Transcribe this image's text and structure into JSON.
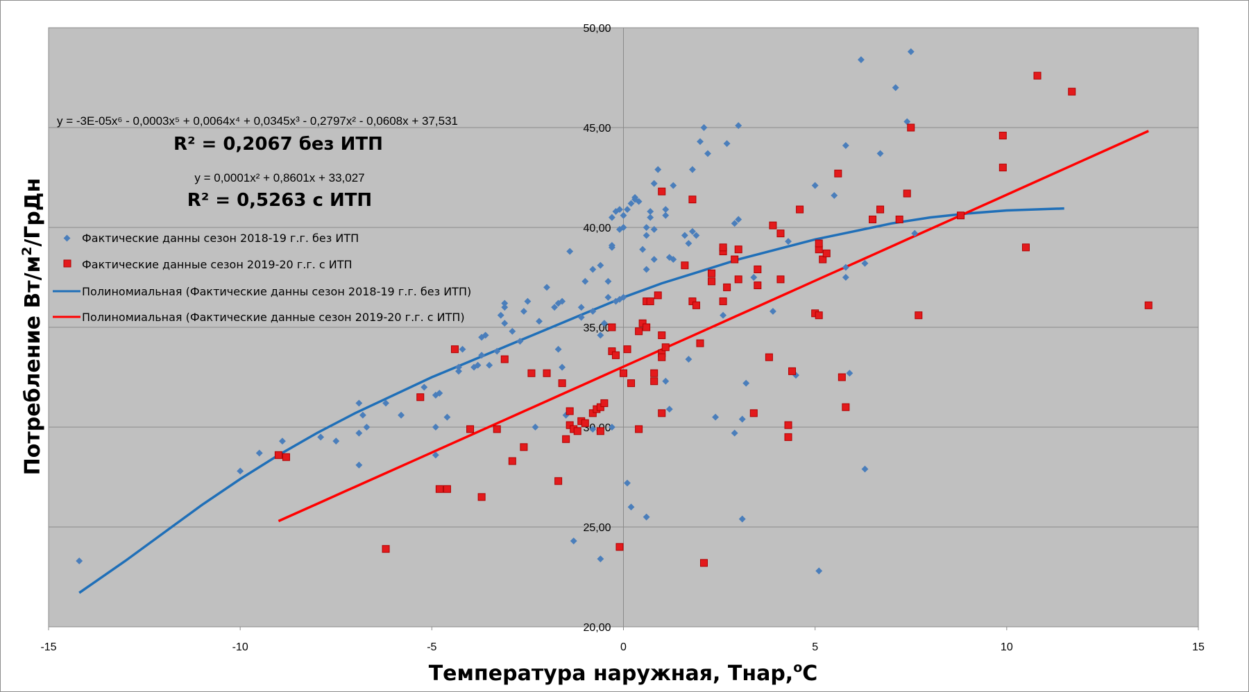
{
  "chart_data": {
    "type": "scatter",
    "xlabel": "Температура наружная, Тнар,",
    "xlabel_sup": "o",
    "xlabel_end": "С",
    "ylabel": "Потребление Вт/м",
    "ylabel_sup": "2",
    "ylabel_end": "/ГрДн",
    "xlim": [
      -15,
      15
    ],
    "ylim": [
      20,
      50
    ],
    "x_ticks": [
      "-15",
      "-10",
      "-5",
      "0",
      "5",
      "10",
      "15"
    ],
    "y_ticks": [
      "20,00",
      "25,00",
      "30,00",
      "35,00",
      "40,00",
      "45,00",
      "50,00"
    ],
    "grid": true,
    "plot_background": "#c0c0c0",
    "legend_position": "left",
    "annotations": {
      "eq1": "y = -3E-05x⁶ - 0,0003x⁵ + 0,0064x⁴ + 0,0345x³ - 0,2797x² - 0,0608x + 37,531",
      "r2_1": "R² = 0,2067 без ИТП",
      "eq2": "y = 0,0001x² + 0,8601x + 33,027",
      "r2_2": "R² = 0,5263 с ИТП"
    },
    "legend": [
      {
        "label": "Фактические данны сезон 2018-19 г.г. без ИТП",
        "marker": "diamond",
        "color": "#4a7ebb"
      },
      {
        "label": "Фактические данные сезон 2019-20 г.г. с ИТП",
        "marker": "square",
        "color": "#e31a1c"
      },
      {
        "label": "Полиномиальная (Фактические данны сезон 2018-19 г.г. без ИТП)",
        "marker": "line",
        "color": "#1f6fb8"
      },
      {
        "label": "Полиномиальная (Фактические данные сезон 2019-20 г.г. с ИТП)",
        "marker": "line",
        "color": "#ff0000"
      }
    ],
    "series": [
      {
        "name": "Фактические данны сезон 2018-19 г.г. без ИТП",
        "marker": "diamond",
        "color": "#4a7ebb",
        "points": [
          [
            -14.2,
            23.3
          ],
          [
            -10.0,
            27.8
          ],
          [
            -9.5,
            28.7
          ],
          [
            -8.9,
            29.3
          ],
          [
            -7.9,
            29.5
          ],
          [
            -7.5,
            29.3
          ],
          [
            -6.9,
            31.2
          ],
          [
            -6.8,
            30.6
          ],
          [
            -6.9,
            29.7
          ],
          [
            -6.7,
            30.0
          ],
          [
            -6.9,
            28.1
          ],
          [
            -6.2,
            31.2
          ],
          [
            -5.8,
            30.6
          ],
          [
            -5.2,
            32.0
          ],
          [
            -4.9,
            31.6
          ],
          [
            -4.8,
            31.7
          ],
          [
            -4.9,
            30.0
          ],
          [
            -4.6,
            30.5
          ],
          [
            -4.9,
            28.6
          ],
          [
            -4.3,
            32.8
          ],
          [
            -4.3,
            33.0
          ],
          [
            -4.2,
            33.9
          ],
          [
            -3.9,
            33.0
          ],
          [
            -3.8,
            33.1
          ],
          [
            -3.7,
            33.6
          ],
          [
            -3.7,
            34.5
          ],
          [
            -3.6,
            34.6
          ],
          [
            -3.5,
            33.1
          ],
          [
            -3.3,
            33.8
          ],
          [
            -3.2,
            35.6
          ],
          [
            -3.1,
            36.0
          ],
          [
            -3.1,
            36.2
          ],
          [
            -3.1,
            35.2
          ],
          [
            -2.9,
            34.8
          ],
          [
            -2.7,
            34.3
          ],
          [
            -2.6,
            35.8
          ],
          [
            -2.5,
            36.3
          ],
          [
            -2.2,
            35.3
          ],
          [
            -2.0,
            37.0
          ],
          [
            -1.8,
            36.0
          ],
          [
            -1.7,
            36.2
          ],
          [
            -1.6,
            36.3
          ],
          [
            -1.6,
            33.0
          ],
          [
            -1.7,
            33.9
          ],
          [
            -1.5,
            30.6
          ],
          [
            -1.4,
            38.8
          ],
          [
            -1.1,
            35.5
          ],
          [
            -1.1,
            36.0
          ],
          [
            -1.0,
            37.3
          ],
          [
            -0.8,
            35.8
          ],
          [
            -0.8,
            37.9
          ],
          [
            -0.6,
            38.1
          ],
          [
            -0.6,
            34.6
          ],
          [
            -0.5,
            35.2
          ],
          [
            -0.4,
            36.5
          ],
          [
            -0.4,
            37.3
          ],
          [
            -0.3,
            39.1
          ],
          [
            -0.3,
            39.0
          ],
          [
            -0.3,
            40.5
          ],
          [
            -0.2,
            40.8
          ],
          [
            -0.1,
            40.9
          ],
          [
            0.0,
            40.0
          ],
          [
            -0.1,
            39.9
          ],
          [
            -0.2,
            36.3
          ],
          [
            -0.1,
            36.4
          ],
          [
            0.0,
            36.5
          ],
          [
            0.0,
            40.6
          ],
          [
            0.1,
            40.9
          ],
          [
            0.2,
            41.2
          ],
          [
            0.3,
            41.4
          ],
          [
            0.3,
            41.5
          ],
          [
            0.4,
            41.3
          ],
          [
            0.5,
            38.9
          ],
          [
            0.6,
            39.6
          ],
          [
            0.6,
            40.0
          ],
          [
            0.6,
            37.9
          ],
          [
            0.7,
            40.5
          ],
          [
            0.7,
            40.8
          ],
          [
            0.8,
            42.2
          ],
          [
            0.9,
            42.9
          ],
          [
            0.8,
            38.4
          ],
          [
            0.8,
            39.9
          ],
          [
            1.1,
            40.6
          ],
          [
            1.1,
            40.9
          ],
          [
            1.3,
            42.1
          ],
          [
            1.3,
            38.4
          ],
          [
            1.6,
            39.6
          ],
          [
            1.7,
            39.2
          ],
          [
            1.8,
            39.8
          ],
          [
            1.9,
            39.6
          ],
          [
            1.8,
            42.9
          ],
          [
            2.0,
            44.3
          ],
          [
            2.1,
            45.0
          ],
          [
            2.2,
            43.7
          ],
          [
            2.6,
            35.6
          ],
          [
            2.7,
            44.2
          ],
          [
            2.9,
            38.4
          ],
          [
            2.9,
            40.2
          ],
          [
            3.0,
            40.4
          ],
          [
            3.0,
            45.1
          ],
          [
            3.2,
            32.2
          ],
          [
            3.4,
            37.5
          ],
          [
            3.9,
            35.8
          ],
          [
            4.3,
            39.3
          ],
          [
            4.5,
            32.6
          ],
          [
            5.0,
            42.1
          ],
          [
            5.1,
            22.8
          ],
          [
            5.3,
            38.7
          ],
          [
            5.5,
            41.6
          ],
          [
            5.6,
            42.7
          ],
          [
            5.8,
            37.5
          ],
          [
            5.8,
            38.0
          ],
          [
            5.8,
            44.1
          ],
          [
            5.9,
            32.7
          ],
          [
            6.2,
            48.4
          ],
          [
            6.3,
            38.2
          ],
          [
            6.3,
            27.9
          ],
          [
            6.7,
            43.7
          ],
          [
            7.1,
            47.0
          ],
          [
            7.4,
            45.3
          ],
          [
            7.5,
            48.8
          ],
          [
            7.6,
            39.7
          ],
          [
            0.2,
            26.0
          ],
          [
            0.1,
            27.2
          ],
          [
            0.6,
            25.5
          ],
          [
            -0.6,
            23.4
          ],
          [
            -1.3,
            24.3
          ],
          [
            -0.8,
            29.9
          ],
          [
            -0.3,
            30.0
          ],
          [
            -2.3,
            30.0
          ],
          [
            1.1,
            32.3
          ],
          [
            1.2,
            30.9
          ],
          [
            1.7,
            33.4
          ],
          [
            2.4,
            30.5
          ],
          [
            2.9,
            29.7
          ],
          [
            3.1,
            30.4
          ],
          [
            3.1,
            25.4
          ],
          [
            1.2,
            38.5
          ]
        ]
      },
      {
        "name": "Фактические данные сезон 2019-20 г.г. с ИТП",
        "marker": "square",
        "color": "#e31a1c",
        "points": [
          [
            -9.0,
            28.6
          ],
          [
            -8.8,
            28.5
          ],
          [
            -6.2,
            23.9
          ],
          [
            -5.3,
            31.5
          ],
          [
            -4.8,
            26.9
          ],
          [
            -4.6,
            26.9
          ],
          [
            -4.4,
            33.9
          ],
          [
            -4.0,
            29.9
          ],
          [
            -3.7,
            26.5
          ],
          [
            -3.3,
            29.9
          ],
          [
            -3.1,
            33.4
          ],
          [
            -2.9,
            28.3
          ],
          [
            -2.6,
            29.0
          ],
          [
            -2.4,
            32.7
          ],
          [
            -2.0,
            32.7
          ],
          [
            -1.7,
            27.3
          ],
          [
            -1.6,
            32.2
          ],
          [
            -1.5,
            29.4
          ],
          [
            -1.4,
            30.1
          ],
          [
            -1.4,
            30.8
          ],
          [
            -1.3,
            29.9
          ],
          [
            -1.2,
            29.8
          ],
          [
            -1.1,
            30.3
          ],
          [
            -1.0,
            30.2
          ],
          [
            -0.8,
            30.7
          ],
          [
            -0.7,
            30.9
          ],
          [
            -0.6,
            31.0
          ],
          [
            -0.6,
            29.8
          ],
          [
            -0.5,
            31.2
          ],
          [
            -0.3,
            35.0
          ],
          [
            -0.3,
            33.8
          ],
          [
            -0.2,
            33.6
          ],
          [
            -0.1,
            24.0
          ],
          [
            0.0,
            32.7
          ],
          [
            0.1,
            33.9
          ],
          [
            0.2,
            32.2
          ],
          [
            0.4,
            34.8
          ],
          [
            0.4,
            29.9
          ],
          [
            0.5,
            35.2
          ],
          [
            0.6,
            35.0
          ],
          [
            0.6,
            36.3
          ],
          [
            0.7,
            36.3
          ],
          [
            0.8,
            32.7
          ],
          [
            0.8,
            32.3
          ],
          [
            0.9,
            36.6
          ],
          [
            1.0,
            33.7
          ],
          [
            1.0,
            33.5
          ],
          [
            1.0,
            34.6
          ],
          [
            1.0,
            41.8
          ],
          [
            1.0,
            30.7
          ],
          [
            1.1,
            34.0
          ],
          [
            1.6,
            38.1
          ],
          [
            1.8,
            41.4
          ],
          [
            1.8,
            36.3
          ],
          [
            1.9,
            36.1
          ],
          [
            2.0,
            34.2
          ],
          [
            2.1,
            23.2
          ],
          [
            2.3,
            37.3
          ],
          [
            2.3,
            37.7
          ],
          [
            2.6,
            36.3
          ],
          [
            2.6,
            38.8
          ],
          [
            2.6,
            39.0
          ],
          [
            2.7,
            37.0
          ],
          [
            2.9,
            38.4
          ],
          [
            3.0,
            38.9
          ],
          [
            3.0,
            37.4
          ],
          [
            3.4,
            30.7
          ],
          [
            3.5,
            37.1
          ],
          [
            3.5,
            37.9
          ],
          [
            3.8,
            33.5
          ],
          [
            3.9,
            40.1
          ],
          [
            4.1,
            39.7
          ],
          [
            4.1,
            37.4
          ],
          [
            4.3,
            30.1
          ],
          [
            4.3,
            29.5
          ],
          [
            4.4,
            32.8
          ],
          [
            4.6,
            40.9
          ],
          [
            5.1,
            38.9
          ],
          [
            5.0,
            35.7
          ],
          [
            5.1,
            35.6
          ],
          [
            5.1,
            39.2
          ],
          [
            5.2,
            38.4
          ],
          [
            5.3,
            38.7
          ],
          [
            5.6,
            42.7
          ],
          [
            5.7,
            32.5
          ],
          [
            5.8,
            31.0
          ],
          [
            6.5,
            40.4
          ],
          [
            6.7,
            40.9
          ],
          [
            7.2,
            40.4
          ],
          [
            7.4,
            41.7
          ],
          [
            7.5,
            45.0
          ],
          [
            7.7,
            35.6
          ],
          [
            8.8,
            40.6
          ],
          [
            9.9,
            44.6
          ],
          [
            9.9,
            43.0
          ],
          [
            10.5,
            39.0
          ],
          [
            10.8,
            47.6
          ],
          [
            11.7,
            46.8
          ],
          [
            13.7,
            36.1
          ]
        ]
      }
    ],
    "trendlines": [
      {
        "name": "Полиномиальная (Фактические данны сезон 2018-19 г.г. без ИТП)",
        "color": "#1f6fb8",
        "type": "poly",
        "coefficients": {
          "c6": -3e-05,
          "c5": -0.0003,
          "c4": 0.0064,
          "c3": 0.0345,
          "c2": -0.2797,
          "c1": -0.0608,
          "c0": 37.531
        },
        "points": [
          [
            -14.2,
            21.7
          ],
          [
            -13.0,
            23.3
          ],
          [
            -12.0,
            24.7
          ],
          [
            -11.0,
            26.1
          ],
          [
            -10.0,
            27.4
          ],
          [
            -9.0,
            28.6
          ],
          [
            -8.0,
            29.7
          ],
          [
            -7.0,
            30.7
          ],
          [
            -6.0,
            31.6
          ],
          [
            -5.0,
            32.5
          ],
          [
            -4.0,
            33.3
          ],
          [
            -3.0,
            34.1
          ],
          [
            -2.0,
            34.9
          ],
          [
            -1.0,
            35.7
          ],
          [
            0.0,
            36.5
          ],
          [
            1.0,
            37.2
          ],
          [
            2.0,
            37.8
          ],
          [
            3.0,
            38.4
          ],
          [
            4.0,
            38.9
          ],
          [
            5.0,
            39.4
          ],
          [
            6.0,
            39.8
          ],
          [
            7.0,
            40.2
          ],
          [
            8.0,
            40.5
          ],
          [
            9.0,
            40.7
          ],
          [
            10.0,
            40.85
          ],
          [
            11.5,
            40.95
          ]
        ]
      },
      {
        "name": "Полиномиальная (Фактические данные сезон 2019-20 г.г. с ИТП)",
        "color": "#ff0000",
        "type": "poly",
        "coefficients": {
          "c2": 0.0001,
          "c1": 0.8601,
          "c0": 33.027
        },
        "x_range": [
          -9.0,
          13.7
        ]
      }
    ]
  }
}
